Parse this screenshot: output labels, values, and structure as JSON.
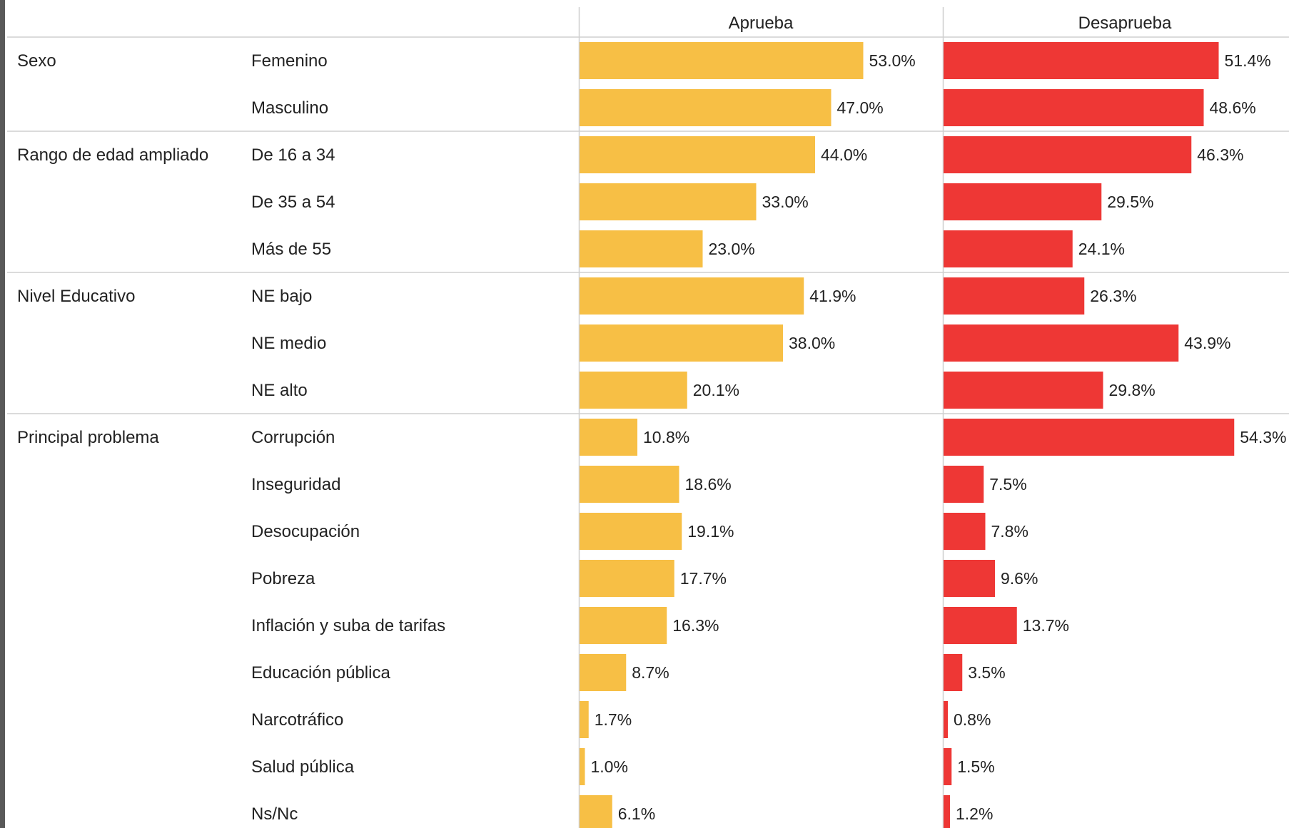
{
  "chart_data": {
    "type": "bar",
    "orientation": "horizontal",
    "panels": [
      "Aprueba",
      "Desaprueba"
    ],
    "colors": {
      "Aprueba": "#f7bf45",
      "Desaprueba": "#ee3735"
    },
    "xlim": [
      0,
      60
    ],
    "groups": [
      {
        "name": "Sexo",
        "rows": [
          {
            "label": "Femenino",
            "Aprueba": 53.0,
            "Desaprueba": 51.4
          },
          {
            "label": "Masculino",
            "Aprueba": 47.0,
            "Desaprueba": 48.6
          }
        ]
      },
      {
        "name": "Rango de edad ampliado",
        "rows": [
          {
            "label": "De 16 a 34",
            "Aprueba": 44.0,
            "Desaprueba": 46.3
          },
          {
            "label": "De 35 a 54",
            "Aprueba": 33.0,
            "Desaprueba": 29.5
          },
          {
            "label": "Más de 55",
            "Aprueba": 23.0,
            "Desaprueba": 24.1
          }
        ]
      },
      {
        "name": "Nivel Educativo",
        "rows": [
          {
            "label": "NE bajo",
            "Aprueba": 41.9,
            "Desaprueba": 26.3
          },
          {
            "label": "NE medio",
            "Aprueba": 38.0,
            "Desaprueba": 43.9
          },
          {
            "label": "NE alto",
            "Aprueba": 20.1,
            "Desaprueba": 29.8
          }
        ]
      },
      {
        "name": "Principal problema",
        "rows": [
          {
            "label": "Corrupción",
            "Aprueba": 10.8,
            "Desaprueba": 54.3
          },
          {
            "label": "Inseguridad",
            "Aprueba": 18.6,
            "Desaprueba": 7.5
          },
          {
            "label": "Desocupación",
            "Aprueba": 19.1,
            "Desaprueba": 7.8
          },
          {
            "label": "Pobreza",
            "Aprueba": 17.7,
            "Desaprueba": 9.6
          },
          {
            "label": "Inflación y suba de tarifas",
            "Aprueba": 16.3,
            "Desaprueba": 13.7
          },
          {
            "label": "Educación pública",
            "Aprueba": 8.7,
            "Desaprueba": 3.5
          },
          {
            "label": "Narcotráfico",
            "Aprueba": 1.7,
            "Desaprueba": 0.8
          },
          {
            "label": "Salud pública",
            "Aprueba": 1.0,
            "Desaprueba": 1.5
          },
          {
            "label": "Ns/Nc",
            "Aprueba": 6.1,
            "Desaprueba": 1.2
          }
        ]
      }
    ]
  }
}
